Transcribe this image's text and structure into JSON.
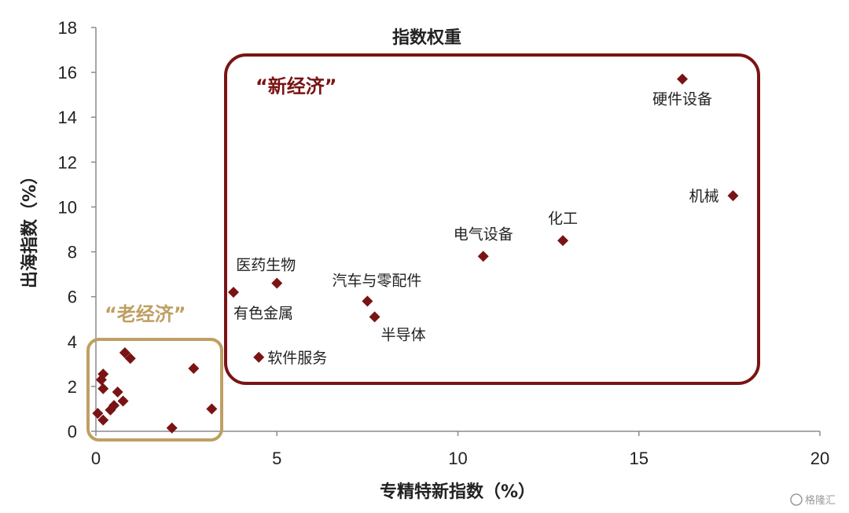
{
  "chart_data": {
    "type": "scatter",
    "title": "指数权重",
    "xlabel": "专精特新指数（%）",
    "ylabel": "出海指数（%）",
    "xlim": [
      0,
      20
    ],
    "ylim": [
      0,
      18
    ],
    "x_ticks": [
      "0",
      "5",
      "10",
      "15",
      "20"
    ],
    "y_ticks": [
      "0",
      "2",
      "4",
      "6",
      "8",
      "10",
      "12",
      "14",
      "16",
      "18"
    ],
    "marker_color": "#7a1414",
    "groups": [
      {
        "name": "“新经济”",
        "color": "#7a1414"
      },
      {
        "name": "“老经济”",
        "color": "#bf9f63"
      }
    ],
    "points": [
      {
        "x": 16.2,
        "y": 15.7,
        "label": "硬件设备"
      },
      {
        "x": 17.6,
        "y": 10.5,
        "label": "机械"
      },
      {
        "x": 10.7,
        "y": 7.8,
        "label": "电气设备"
      },
      {
        "x": 12.9,
        "y": 8.5,
        "label": "化工"
      },
      {
        "x": 5.0,
        "y": 6.6,
        "label": "医药生物"
      },
      {
        "x": 3.8,
        "y": 6.2,
        "label": "有色金属"
      },
      {
        "x": 7.5,
        "y": 5.8,
        "label": "汽车与零配件"
      },
      {
        "x": 7.7,
        "y": 5.1,
        "label": "半导体"
      },
      {
        "x": 4.5,
        "y": 3.3,
        "label": "软件服务"
      },
      {
        "x": 0.8,
        "y": 3.5,
        "label": ""
      },
      {
        "x": 0.95,
        "y": 3.25,
        "label": ""
      },
      {
        "x": 0.2,
        "y": 2.55,
        "label": ""
      },
      {
        "x": 0.15,
        "y": 2.3,
        "label": ""
      },
      {
        "x": 0.2,
        "y": 1.9,
        "label": ""
      },
      {
        "x": 0.6,
        "y": 1.75,
        "label": ""
      },
      {
        "x": 0.75,
        "y": 1.35,
        "label": ""
      },
      {
        "x": 0.5,
        "y": 1.15,
        "label": ""
      },
      {
        "x": 0.4,
        "y": 0.95,
        "label": ""
      },
      {
        "x": 0.05,
        "y": 0.8,
        "label": ""
      },
      {
        "x": 0.2,
        "y": 0.5,
        "label": ""
      },
      {
        "x": 2.7,
        "y": 2.8,
        "label": ""
      },
      {
        "x": 3.2,
        "y": 1.0,
        "label": ""
      },
      {
        "x": 2.1,
        "y": 0.15,
        "label": ""
      }
    ]
  },
  "watermark": "格隆汇"
}
